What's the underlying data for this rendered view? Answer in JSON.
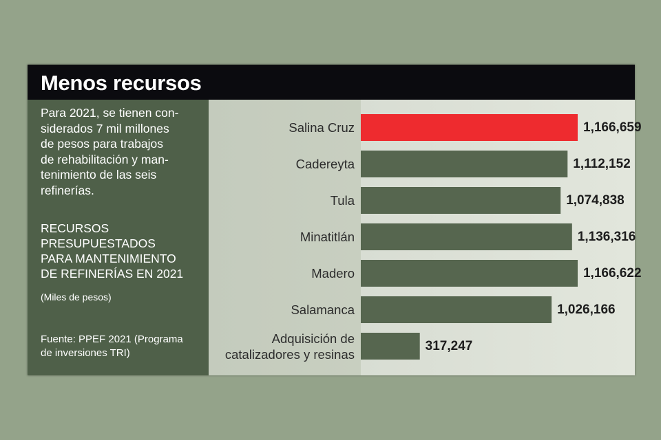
{
  "title": "Menos recursos",
  "description_lines": [
    "Para 2021, se tienen con-",
    "siderados 7 mil millones",
    "de pesos para trabajos",
    "de rehabilitación y man-",
    "tenimiento de las seis",
    "refinerías."
  ],
  "chart_heading_lines": [
    "RECURSOS",
    "PRESUPUESTADOS",
    "PARA MANTENIMIENTO",
    "DE REFINERÍAS EN 2021"
  ],
  "units": "(Miles de pesos)",
  "source_lines": [
    "Fuente: PPEF 2021 (Programa",
    "de inversiones TRI)"
  ],
  "colors": {
    "background": "#94a38a",
    "header": "#0b0b0f",
    "sidebar": "#4f6049",
    "highlight_bar": "#ee2b2f",
    "bar": "#56664f"
  },
  "chart_data": {
    "type": "bar",
    "orientation": "horizontal",
    "categories": [
      "Salina Cruz",
      "Cadereyta",
      "Tula",
      "Minatitlán",
      "Madero",
      "Salamanca",
      "Adquisición de catalizadores y resinas"
    ],
    "category_lines": [
      [
        "Salina Cruz"
      ],
      [
        "Cadereyta"
      ],
      [
        "Tula"
      ],
      [
        "Minatitlán"
      ],
      [
        "Madero"
      ],
      [
        "Salamanca"
      ],
      [
        "Adquisición de",
        "catalizadores y resinas"
      ]
    ],
    "values": [
      1166659,
      1112152,
      1074838,
      1136316,
      1166622,
      1026166,
      317247
    ],
    "value_labels": [
      "1,166,659",
      "1,112,152",
      "1,074,838",
      "1,136,316",
      "1,166,622",
      "1,026,166",
      "317,247"
    ],
    "highlight_index": 0,
    "xlim": [
      0,
      1166659
    ],
    "grid": false,
    "legend": "none"
  }
}
